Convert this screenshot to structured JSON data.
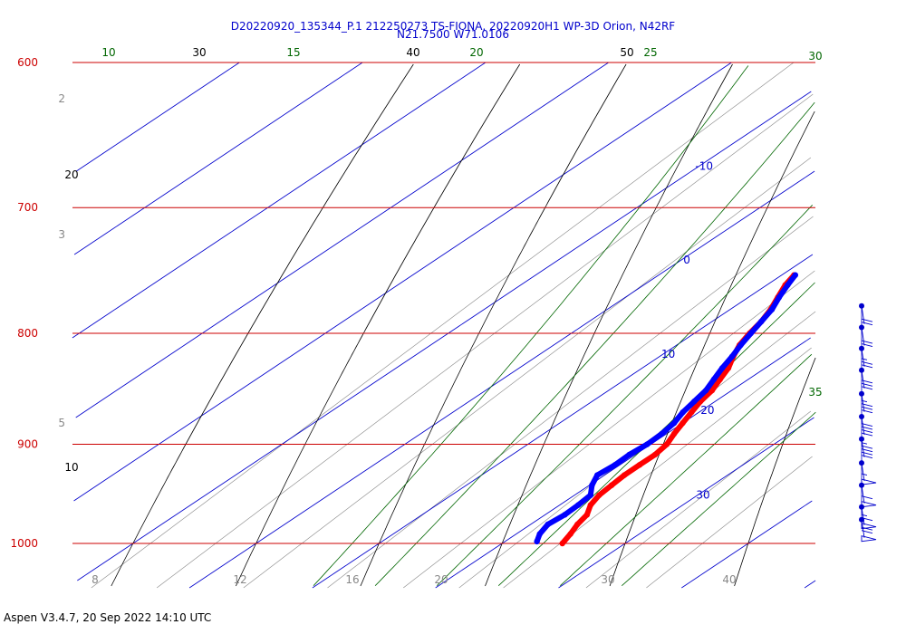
{
  "header": {
    "title_line1": "D20220920_135344_P.1 212250273 TS-FIONA, 20220920H1 WP-3D Orion, N42RF",
    "title_line2": "N21.7500 W71.0106"
  },
  "footer": {
    "text": "Aspen V3.4.7, 20 Sep 2022  14:10 UTC"
  },
  "colors": {
    "isobar": "#cc0000",
    "isotherm": "#0000cc",
    "dry_adiabat": "#000000",
    "moist_adiabat": "#006600",
    "mixing_ratio": "#888888",
    "temperature": "#ff0000",
    "dewpoint": "#0000ff",
    "wind": "#0000cc"
  },
  "chart_data": {
    "type": "skew-t",
    "pressure_levels": [
      "600",
      "700",
      "800",
      "900",
      "1000"
    ],
    "isotherm_labels": [
      "-10",
      "0",
      "10",
      "20",
      "30"
    ],
    "dry_adiabat_labels": {
      "top": [
        "30",
        "40",
        "50"
      ],
      "left": [
        "20",
        "10"
      ]
    },
    "moist_adiabat_labels": [
      "10",
      "15",
      "20",
      "25",
      "30",
      "35"
    ],
    "mixing_ratio_labels": {
      "left": [
        "2",
        "3",
        "5"
      ],
      "bottom": [
        "8",
        "12",
        "16",
        "20",
        "30",
        "40"
      ]
    },
    "temperature_profile": [
      {
        "p": 1000,
        "t": 24.9
      },
      {
        "p": 990,
        "t": 24.4
      },
      {
        "p": 980,
        "t": 23.8
      },
      {
        "p": 970,
        "t": 23.4
      },
      {
        "p": 960,
        "t": 22.5
      },
      {
        "p": 950,
        "t": 22.0
      },
      {
        "p": 940,
        "t": 21.8
      },
      {
        "p": 930,
        "t": 21.6
      },
      {
        "p": 920,
        "t": 21.6
      },
      {
        "p": 910,
        "t": 21.6
      },
      {
        "p": 900,
        "t": 21.3
      },
      {
        "p": 890,
        "t": 20.6
      },
      {
        "p": 880,
        "t": 20.0
      },
      {
        "p": 870,
        "t": 19.4
      },
      {
        "p": 860,
        "t": 18.8
      },
      {
        "p": 850,
        "t": 18.4
      },
      {
        "p": 840,
        "t": 17.7
      },
      {
        "p": 830,
        "t": 17.0
      },
      {
        "p": 820,
        "t": 16.0
      },
      {
        "p": 810,
        "t": 15.1
      },
      {
        "p": 800,
        "t": 14.5
      },
      {
        "p": 790,
        "t": 14.0
      },
      {
        "p": 780,
        "t": 13.3
      },
      {
        "p": 770,
        "t": 12.4
      },
      {
        "p": 760,
        "t": 11.5
      },
      {
        "p": 752,
        "t": 11.0
      }
    ],
    "dewpoint_profile": [
      {
        "p": 998,
        "t": 22.6
      },
      {
        "p": 990,
        "t": 21.9
      },
      {
        "p": 980,
        "t": 21.4
      },
      {
        "p": 970,
        "t": 21.6
      },
      {
        "p": 960,
        "t": 21.5
      },
      {
        "p": 950,
        "t": 21.3
      },
      {
        "p": 940,
        "t": 20.2
      },
      {
        "p": 930,
        "t": 19.4
      },
      {
        "p": 920,
        "t": 19.6
      },
      {
        "p": 910,
        "t": 19.5
      },
      {
        "p": 900,
        "t": 19.7
      },
      {
        "p": 890,
        "t": 19.6
      },
      {
        "p": 880,
        "t": 19.3
      },
      {
        "p": 870,
        "t": 18.7
      },
      {
        "p": 860,
        "t": 18.3
      },
      {
        "p": 850,
        "t": 17.9
      },
      {
        "p": 840,
        "t": 17.2
      },
      {
        "p": 830,
        "t": 16.5
      },
      {
        "p": 820,
        "t": 15.9
      },
      {
        "p": 810,
        "t": 15.2
      },
      {
        "p": 800,
        "t": 14.6
      },
      {
        "p": 790,
        "t": 14.0
      },
      {
        "p": 780,
        "t": 13.4
      },
      {
        "p": 770,
        "t": 12.5
      },
      {
        "p": 760,
        "t": 11.7
      },
      {
        "p": 752,
        "t": 11.1
      }
    ],
    "wind_barbs": [
      {
        "p": 777,
        "speed": 20
      },
      {
        "p": 795,
        "speed": 20
      },
      {
        "p": 813,
        "speed": 25
      },
      {
        "p": 832,
        "speed": 30
      },
      {
        "p": 853,
        "speed": 35
      },
      {
        "p": 874,
        "speed": 40
      },
      {
        "p": 895,
        "speed": 45
      },
      {
        "p": 918,
        "speed": 55
      },
      {
        "p": 940,
        "speed": 60
      },
      {
        "p": 962,
        "speed": 65
      },
      {
        "p": 975,
        "speed": 70
      }
    ]
  }
}
